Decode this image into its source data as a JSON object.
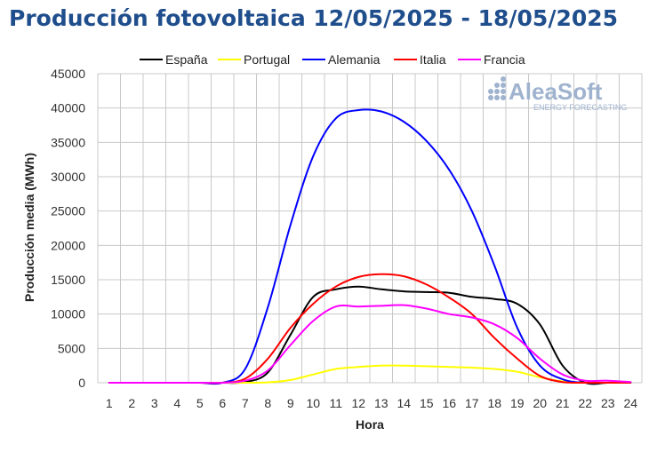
{
  "title": "Producción fotovoltaica 12/05/2025 - 18/05/2025",
  "watermark": {
    "brand": "AleaSoft",
    "tagline": "ENERGY FORECASTING",
    "color": "#9fb3cf"
  },
  "chart_data": {
    "type": "line",
    "xlabel": "Hora",
    "ylabel": "Producción media (MWh)",
    "x": [
      1,
      2,
      3,
      4,
      5,
      6,
      7,
      8,
      9,
      10,
      11,
      12,
      13,
      14,
      15,
      16,
      17,
      18,
      19,
      20,
      21,
      22,
      23,
      24
    ],
    "ylim": [
      0,
      45000
    ],
    "yticks": [
      0,
      5000,
      10000,
      15000,
      20000,
      25000,
      30000,
      35000,
      40000,
      45000
    ],
    "grid": true,
    "legend_position": "top",
    "series": [
      {
        "name": "España",
        "color": "#000000",
        "values": [
          0,
          0,
          0,
          0,
          0,
          0,
          100,
          1500,
          7000,
          12500,
          13600,
          14000,
          13600,
          13300,
          13200,
          13100,
          12500,
          12200,
          11500,
          8500,
          2500,
          0,
          0,
          0
        ]
      },
      {
        "name": "Portugal",
        "color": "#ffff00",
        "values": [
          0,
          0,
          0,
          0,
          0,
          0,
          0,
          50,
          400,
          1200,
          2000,
          2300,
          2500,
          2500,
          2400,
          2300,
          2200,
          2000,
          1600,
          800,
          200,
          0,
          0,
          0
        ]
      },
      {
        "name": "Alemania",
        "color": "#0000ff",
        "values": [
          0,
          0,
          0,
          0,
          0,
          0,
          2000,
          11000,
          23000,
          33000,
          38500,
          39700,
          39500,
          38000,
          35200,
          31000,
          25000,
          17000,
          8000,
          2500,
          500,
          0,
          0,
          0
        ]
      },
      {
        "name": "Italia",
        "color": "#ff0000",
        "values": [
          0,
          0,
          0,
          0,
          0,
          0,
          600,
          3500,
          8000,
          11500,
          14000,
          15400,
          15800,
          15500,
          14300,
          12400,
          10000,
          6500,
          3500,
          1000,
          100,
          0,
          0,
          0
        ]
      },
      {
        "name": "Francia",
        "color": "#ff00ff",
        "values": [
          0,
          0,
          0,
          0,
          0,
          0,
          300,
          1800,
          5500,
          9000,
          11100,
          11100,
          11200,
          11300,
          10800,
          10000,
          9500,
          8500,
          6500,
          3500,
          1200,
          300,
          300,
          100
        ]
      }
    ]
  }
}
